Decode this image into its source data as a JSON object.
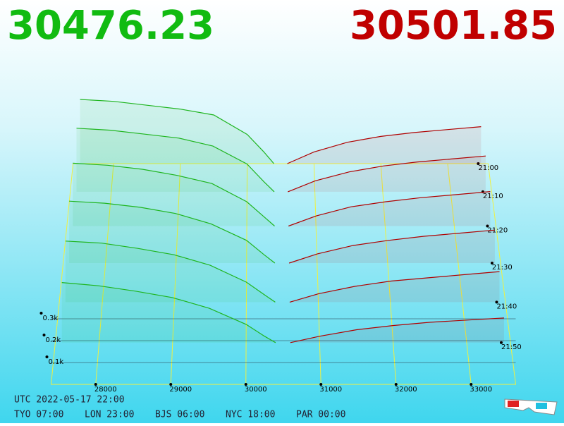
{
  "header": {
    "bid_price": "30476.23",
    "ask_price": "30501.85"
  },
  "chart_data": {
    "type": "depth3d",
    "x": [
      27500,
      28000,
      28500,
      29000,
      29500,
      30000,
      30250,
      30400,
      30600,
      31000,
      31500,
      32000,
      32500,
      33000,
      33500
    ],
    "xticks": [
      28000,
      29000,
      30000,
      31000,
      32000,
      33000
    ],
    "xlim": [
      27500,
      33500
    ],
    "times": [
      "21:00",
      "21:10",
      "21:20",
      "21:30",
      "21:40",
      "21:50"
    ],
    "zlim": [
      0,
      400
    ],
    "zticks": [
      {
        "value": 100,
        "label": "0.1k"
      },
      {
        "value": 200,
        "label": "0.2k"
      },
      {
        "value": 300,
        "label": "0.3k"
      }
    ],
    "bid_color": "#1fb51f",
    "ask_color": "#b00000",
    "bids": [
      [
        330,
        320,
        300,
        280,
        250,
        150,
        60,
        0,
        null,
        null,
        null,
        null,
        null,
        null,
        null
      ],
      [
        320,
        310,
        290,
        270,
        230,
        140,
        50,
        0,
        null,
        null,
        null,
        null,
        null,
        null,
        null
      ],
      [
        310,
        300,
        280,
        250,
        210,
        120,
        45,
        0,
        null,
        null,
        null,
        null,
        null,
        null,
        null
      ],
      [
        300,
        290,
        270,
        240,
        190,
        110,
        40,
        0,
        null,
        null,
        null,
        null,
        null,
        null,
        null
      ],
      [
        290,
        280,
        255,
        225,
        175,
        95,
        35,
        0,
        null,
        null,
        null,
        null,
        null,
        null,
        null
      ],
      [
        280,
        265,
        240,
        210,
        160,
        85,
        30,
        0,
        null,
        null,
        null,
        null,
        null,
        null,
        null
      ]
    ],
    "asks": [
      [
        null,
        null,
        null,
        null,
        null,
        null,
        null,
        null,
        0,
        60,
        110,
        140,
        160,
        175,
        190
      ],
      [
        null,
        null,
        null,
        null,
        null,
        null,
        null,
        null,
        0,
        55,
        100,
        130,
        150,
        165,
        180
      ],
      [
        null,
        null,
        null,
        null,
        null,
        null,
        null,
        null,
        0,
        50,
        95,
        120,
        140,
        155,
        170
      ],
      [
        null,
        null,
        null,
        null,
        null,
        null,
        null,
        null,
        0,
        45,
        85,
        110,
        130,
        145,
        160
      ],
      [
        null,
        null,
        null,
        null,
        null,
        null,
        null,
        null,
        0,
        40,
        75,
        100,
        115,
        130,
        145
      ],
      [
        null,
        null,
        null,
        null,
        null,
        null,
        null,
        null,
        0,
        30,
        60,
        80,
        95,
        105,
        115
      ]
    ]
  },
  "footer": {
    "utc": "UTC 2022-05-17 22:00",
    "zones": [
      "TYO 07:00",
      "LON 23:00",
      "BJS 06:00",
      "NYC 18:00",
      "PAR 00:00"
    ]
  }
}
